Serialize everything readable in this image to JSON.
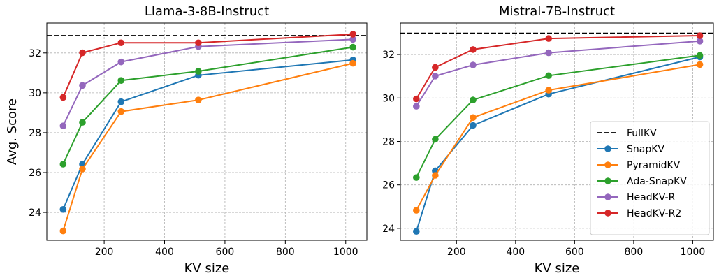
{
  "chart_data": [
    {
      "type": "line",
      "title": "Llama-3-8B-Instruct",
      "xlabel": "KV size",
      "ylabel": "Avg. Score",
      "x": [
        64,
        128,
        256,
        512,
        1024
      ],
      "xlim": [
        10,
        1070
      ],
      "ylim": [
        22.6,
        33.5
      ],
      "xticks": [
        200,
        400,
        600,
        800,
        1000
      ],
      "yticks": [
        24,
        26,
        28,
        30,
        32
      ],
      "grid": true,
      "reference": {
        "name": "FullKV",
        "value": 32.87
      },
      "series": [
        {
          "name": "SnapKV",
          "color": "#1f77b4",
          "values": [
            24.15,
            26.42,
            29.55,
            30.88,
            31.65
          ]
        },
        {
          "name": "PyramidKV",
          "color": "#ff7f0e",
          "values": [
            23.07,
            26.18,
            29.06,
            29.64,
            31.48
          ]
        },
        {
          "name": "Ada-SnapKV",
          "color": "#2ca02c",
          "values": [
            26.42,
            28.52,
            30.62,
            31.08,
            32.29
          ]
        },
        {
          "name": "HeadKV-R",
          "color": "#9467bd",
          "values": [
            28.34,
            30.37,
            31.55,
            32.32,
            32.68
          ]
        },
        {
          "name": "HeadKV-R2",
          "color": "#d62728",
          "values": [
            29.77,
            32.01,
            32.51,
            32.51,
            32.94
          ]
        }
      ]
    },
    {
      "type": "line",
      "title": "Mistral-7B-Instruct",
      "xlabel": "KV size",
      "ylabel": "",
      "x": [
        64,
        128,
        256,
        512,
        1024
      ],
      "xlim": [
        10,
        1070
      ],
      "ylim": [
        23.45,
        33.45
      ],
      "xticks": [
        200,
        400,
        600,
        800,
        1000
      ],
      "yticks": [
        24,
        26,
        28,
        30,
        32
      ],
      "grid": true,
      "legend": "lower-right",
      "reference": {
        "name": "FullKV",
        "value": 32.98
      },
      "series": [
        {
          "name": "SnapKV",
          "color": "#1f77b4",
          "values": [
            23.86,
            26.65,
            28.74,
            30.18,
            31.89
          ]
        },
        {
          "name": "PyramidKV",
          "color": "#ff7f0e",
          "values": [
            24.83,
            26.44,
            29.1,
            30.36,
            31.54
          ]
        },
        {
          "name": "Ada-SnapKV",
          "color": "#2ca02c",
          "values": [
            26.34,
            28.1,
            29.91,
            31.03,
            31.96
          ]
        },
        {
          "name": "HeadKV-R",
          "color": "#9467bd",
          "values": [
            29.62,
            31.01,
            31.52,
            32.08,
            32.62
          ]
        },
        {
          "name": "HeadKV-R2",
          "color": "#d62728",
          "values": [
            29.96,
            31.41,
            32.23,
            32.74,
            32.87
          ]
        }
      ]
    }
  ]
}
